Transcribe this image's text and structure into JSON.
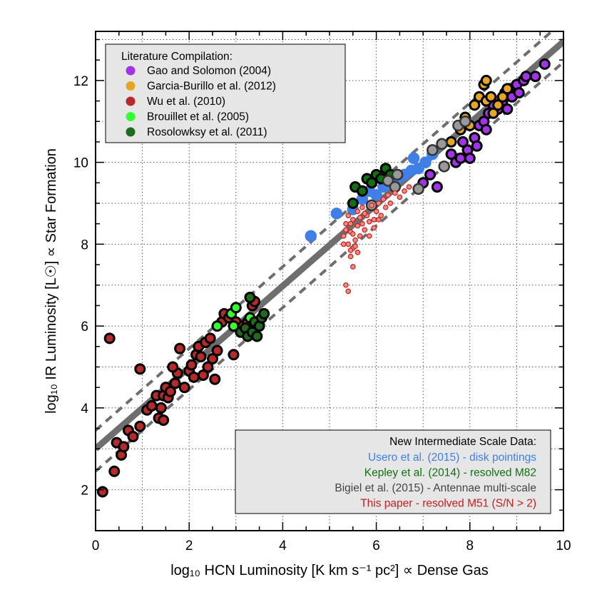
{
  "chart_data": {
    "type": "scatter",
    "xlabel": "log₁₀ HCN Luminosity [K km s⁻¹ pc²] ∝ Dense Gas",
    "ylabel": "log₁₀ IR Luminosity [L☉] ∝ Star Formation",
    "xlim": [
      0,
      10
    ],
    "ylim": [
      1,
      13.2
    ],
    "xticks": [
      0,
      2,
      4,
      6,
      8,
      10
    ],
    "yticks": [
      2,
      4,
      6,
      8,
      10,
      12
    ],
    "grid": true,
    "lines": [
      {
        "kind": "fit",
        "style": "solid",
        "color": "#6e6e6e",
        "x": [
          0,
          10
        ],
        "y": [
          3.0,
          12.95
        ]
      },
      {
        "kind": "offset-upper",
        "style": "dashed",
        "color": "#6e6e6e",
        "x": [
          0,
          10
        ],
        "y": [
          3.45,
          13.45
        ]
      },
      {
        "kind": "offset-lower",
        "style": "dashed",
        "color": "#6e6e6e",
        "x": [
          0,
          10
        ],
        "y": [
          2.45,
          12.45
        ]
      }
    ],
    "legend_literature": {
      "title": "Literature Compilation:",
      "placement": "top-left",
      "entries": [
        {
          "label": "Gao and Solomon (2004)",
          "color": "#a233e8"
        },
        {
          "label": "Garcia-Burillo et al. (2012)",
          "color": "#e6a623"
        },
        {
          "label": "Wu et al. (2010)",
          "color": "#b52a2a"
        },
        {
          "label": "Brouillet et al. (2005)",
          "color": "#33ff33"
        },
        {
          "label": "Rosolowksy et al. (2011)",
          "color": "#1f6b1f"
        }
      ]
    },
    "legend_new": {
      "title": "New Intermediate Scale Data:",
      "placement": "bottom-right",
      "entries": [
        {
          "label": "Usero et al. (2015) - disk pointings",
          "color": "#3f7fe6"
        },
        {
          "label": "Kepley et al. (2014) - resolved M82",
          "color": "#127012"
        },
        {
          "label": "Bigiel et al. (2015) - Antennae multi-scale",
          "color": "#444444"
        },
        {
          "label": "This paper - resolved M51 (S/N > 2)",
          "color": "#c42020"
        }
      ]
    },
    "series": [
      {
        "name": "Wu et al. (2010)",
        "fill": "#b52a2a",
        "outline": "#000000",
        "size": "large",
        "points": [
          [
            0.15,
            1.95
          ],
          [
            0.3,
            5.7
          ],
          [
            0.4,
            2.45
          ],
          [
            0.45,
            3.15
          ],
          [
            0.55,
            2.85
          ],
          [
            0.6,
            3.05
          ],
          [
            0.7,
            3.45
          ],
          [
            0.8,
            3.3
          ],
          [
            0.95,
            3.55
          ],
          [
            0.95,
            4.95
          ],
          [
            1.1,
            3.95
          ],
          [
            1.2,
            4.05
          ],
          [
            1.3,
            4.3
          ],
          [
            1.35,
            3.75
          ],
          [
            1.45,
            3.7
          ],
          [
            1.4,
            4.0
          ],
          [
            1.45,
            4.3
          ],
          [
            1.5,
            4.5
          ],
          [
            1.55,
            4.25
          ],
          [
            1.6,
            4.4
          ],
          [
            1.7,
            4.6
          ],
          [
            1.75,
            4.85
          ],
          [
            1.65,
            5.0
          ],
          [
            1.8,
            5.45
          ],
          [
            1.9,
            4.5
          ],
          [
            2.0,
            4.9
          ],
          [
            2.05,
            5.05
          ],
          [
            2.1,
            4.75
          ],
          [
            2.15,
            5.3
          ],
          [
            2.2,
            5.5
          ],
          [
            2.25,
            5.25
          ],
          [
            2.3,
            4.8
          ],
          [
            2.35,
            5.6
          ],
          [
            2.4,
            5.0
          ],
          [
            2.45,
            5.7
          ],
          [
            2.5,
            5.2
          ],
          [
            2.55,
            4.7
          ],
          [
            2.6,
            5.4
          ],
          [
            2.7,
            6.1
          ],
          [
            2.75,
            6.3
          ],
          [
            2.85,
            6.2
          ],
          [
            2.95,
            5.3
          ],
          [
            3.0,
            6.1
          ],
          [
            3.1,
            5.95
          ],
          [
            3.15,
            6.0
          ],
          [
            3.25,
            6.1
          ],
          [
            3.35,
            6.5
          ],
          [
            3.4,
            6.6
          ]
        ]
      },
      {
        "name": "Brouillet et al. (2005)",
        "fill": "#33ff33",
        "outline": "#000000",
        "size": "large",
        "points": [
          [
            2.6,
            6.0
          ],
          [
            2.9,
            6.3
          ],
          [
            2.95,
            6.0
          ],
          [
            3.0,
            6.45
          ],
          [
            3.3,
            6.2
          ]
        ]
      },
      {
        "name": "Rosolowksy et al. (2011)",
        "fill": "#1f6b1f",
        "outline": "#000000",
        "size": "large",
        "points": [
          [
            3.1,
            5.85
          ],
          [
            3.2,
            5.95
          ],
          [
            3.25,
            5.75
          ],
          [
            3.3,
            6.7
          ],
          [
            3.35,
            5.85
          ],
          [
            3.4,
            6.1
          ],
          [
            3.45,
            5.75
          ],
          [
            3.5,
            6.0
          ],
          [
            3.55,
            6.2
          ],
          [
            3.6,
            6.3
          ]
        ]
      },
      {
        "name": "Gao and Solomon (2004)",
        "fill": "#a233e8",
        "outline": "#000000",
        "size": "large",
        "points": [
          [
            7.0,
            9.5
          ],
          [
            7.15,
            9.7
          ],
          [
            7.3,
            9.4
          ],
          [
            7.45,
            9.9
          ],
          [
            7.6,
            10.2
          ],
          [
            7.7,
            10.0
          ],
          [
            7.8,
            10.1
          ],
          [
            7.85,
            10.5
          ],
          [
            7.95,
            10.3
          ],
          [
            8.0,
            10.1
          ],
          [
            8.1,
            10.6
          ],
          [
            8.15,
            10.4
          ],
          [
            8.2,
            10.9
          ],
          [
            8.3,
            11.0
          ],
          [
            8.35,
            10.8
          ],
          [
            8.4,
            11.2
          ],
          [
            8.5,
            11.4
          ],
          [
            8.6,
            11.3
          ],
          [
            8.7,
            11.5
          ],
          [
            8.75,
            11.7
          ],
          [
            8.8,
            11.3
          ],
          [
            8.85,
            11.8
          ],
          [
            8.9,
            11.6
          ],
          [
            9.0,
            11.9
          ],
          [
            9.05,
            11.7
          ],
          [
            9.15,
            12.0
          ],
          [
            9.2,
            12.1
          ],
          [
            9.4,
            12.1
          ],
          [
            9.6,
            12.4
          ]
        ]
      },
      {
        "name": "Garcia-Burillo et al. (2012)",
        "fill": "#e6a623",
        "outline": "#000000",
        "size": "large",
        "points": [
          [
            7.6,
            10.5
          ],
          [
            7.8,
            10.8
          ],
          [
            7.9,
            11.1
          ],
          [
            8.0,
            10.9
          ],
          [
            8.1,
            11.4
          ],
          [
            8.2,
            11.6
          ],
          [
            8.3,
            11.9
          ],
          [
            8.35,
            11.5
          ],
          [
            8.45,
            11.6
          ],
          [
            8.5,
            11.2
          ],
          [
            8.6,
            11.4
          ],
          [
            8.7,
            11.6
          ],
          [
            8.8,
            11.8
          ],
          [
            8.35,
            12.0
          ]
        ]
      },
      {
        "name": "Usero et al. (2015) - disk pointings",
        "fill": "#3f7fe6",
        "outline": "#3f7fe6",
        "size": "medium",
        "points": [
          [
            4.6,
            8.2
          ],
          [
            5.15,
            8.75
          ],
          [
            5.5,
            8.85
          ],
          [
            5.7,
            9.1
          ],
          [
            5.85,
            9.3
          ],
          [
            6.0,
            9.2
          ],
          [
            6.15,
            9.4
          ],
          [
            6.3,
            9.5
          ],
          [
            6.45,
            9.6
          ],
          [
            6.6,
            9.7
          ],
          [
            6.75,
            9.8
          ],
          [
            6.9,
            9.85
          ],
          [
            7.05,
            10.0
          ],
          [
            7.2,
            10.2
          ],
          [
            6.8,
            10.1
          ]
        ]
      },
      {
        "name": "Kepley et al. (2014) - resolved M82",
        "fill": "#127012",
        "outline": "#000000",
        "size": "large",
        "points": [
          [
            5.5,
            9.0
          ],
          [
            5.55,
            9.4
          ],
          [
            5.7,
            9.3
          ],
          [
            5.8,
            9.6
          ],
          [
            5.9,
            9.5
          ],
          [
            6.0,
            9.7
          ],
          [
            6.1,
            9.6
          ],
          [
            6.2,
            9.85
          ],
          [
            6.3,
            9.7
          ]
        ]
      },
      {
        "name": "Bigiel et al. (2015) - Antennae multi-scale",
        "fill": "#999999",
        "outline": "#333333",
        "size": "medium",
        "points": [
          [
            5.9,
            8.95
          ],
          [
            6.25,
            9.55
          ],
          [
            6.4,
            9.4
          ],
          [
            6.45,
            9.7
          ],
          [
            6.9,
            9.35
          ],
          [
            7.2,
            10.3
          ],
          [
            7.4,
            10.45
          ],
          [
            7.45,
            9.9
          ],
          [
            7.75,
            10.9
          ],
          [
            7.9,
            11.0
          ]
        ]
      },
      {
        "name": "This paper - resolved M51 (S/N > 2)",
        "fill": "#f08b80",
        "outline": "#c42020",
        "size": "small",
        "points": [
          [
            5.35,
            7.0
          ],
          [
            5.4,
            6.85
          ],
          [
            5.45,
            7.7
          ],
          [
            5.5,
            7.45
          ],
          [
            5.3,
            8.2
          ],
          [
            5.35,
            8.5
          ],
          [
            5.4,
            8.0
          ],
          [
            5.45,
            8.3
          ],
          [
            5.5,
            7.9
          ],
          [
            5.5,
            8.6
          ],
          [
            5.55,
            8.1
          ],
          [
            5.6,
            8.45
          ],
          [
            5.6,
            8.8
          ],
          [
            5.65,
            8.2
          ],
          [
            5.7,
            8.5
          ],
          [
            5.7,
            8.9
          ],
          [
            5.75,
            8.35
          ],
          [
            5.8,
            8.7
          ],
          [
            5.85,
            8.55
          ],
          [
            5.9,
            8.95
          ],
          [
            5.95,
            8.6
          ],
          [
            6.0,
            8.8
          ],
          [
            6.05,
            9.0
          ],
          [
            6.1,
            8.7
          ],
          [
            6.15,
            9.1
          ],
          [
            6.2,
            8.9
          ],
          [
            6.25,
            9.2
          ],
          [
            6.3,
            9.0
          ],
          [
            6.4,
            9.25
          ],
          [
            6.5,
            9.15
          ],
          [
            6.6,
            9.3
          ],
          [
            6.7,
            9.4
          ],
          [
            5.4,
            8.7
          ],
          [
            5.3,
            8.0
          ],
          [
            5.5,
            8.25
          ],
          [
            5.55,
            7.95
          ],
          [
            5.45,
            8.5
          ],
          [
            5.65,
            8.65
          ],
          [
            5.75,
            8.75
          ],
          [
            5.85,
            8.2
          ],
          [
            5.6,
            7.8
          ],
          [
            5.95,
            8.4
          ],
          [
            6.05,
            8.6
          ],
          [
            5.35,
            8.35
          ],
          [
            5.45,
            7.85
          ]
        ]
      }
    ]
  }
}
